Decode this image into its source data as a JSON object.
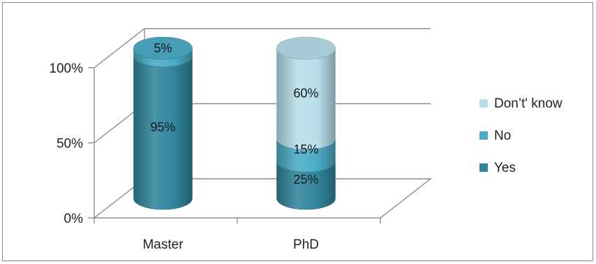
{
  "chart_data": {
    "type": "bar",
    "stacked": true,
    "style": "3d-cylinder",
    "title": "",
    "xlabel": "",
    "ylabel": "",
    "ylim": [
      0,
      100
    ],
    "yticks": [
      "0%",
      "50%",
      "100%"
    ],
    "ytick_values": [
      0,
      50,
      100
    ],
    "categories": [
      "Master",
      "PhD"
    ],
    "series": [
      {
        "name": "Yes",
        "values": [
          95,
          25
        ],
        "labels": [
          "95%",
          "25%"
        ],
        "color": "#31859c"
      },
      {
        "name": "No",
        "values": [
          5,
          15
        ],
        "labels": [
          "5%",
          "15%"
        ],
        "color": "#4bacc6"
      },
      {
        "name": "Don’t' know",
        "values": [
          0,
          60
        ],
        "labels": [
          "",
          "60%"
        ],
        "color": "#b7dee8"
      }
    ],
    "grid": true,
    "legend_position": "right"
  }
}
